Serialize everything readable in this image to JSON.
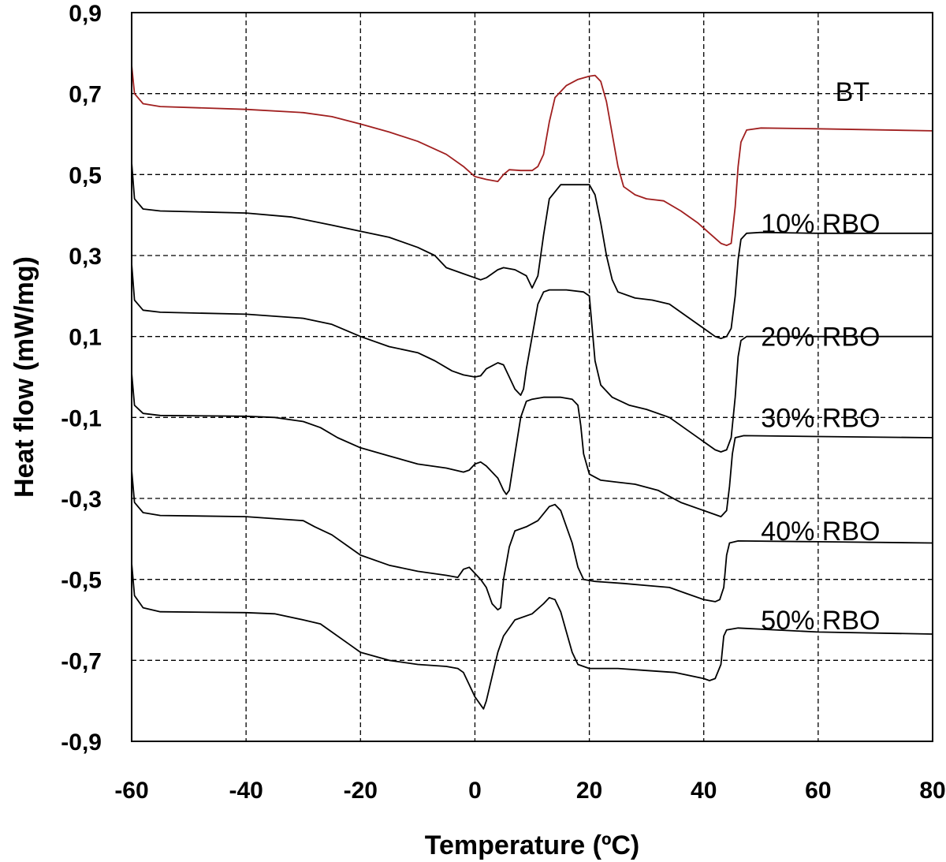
{
  "chart_data": {
    "type": "line",
    "title": "",
    "xlabel": "Temperature (ºC)",
    "ylabel": "Heat flow (mW/mg)",
    "xlim": [
      -60,
      80
    ],
    "ylim": [
      -0.9,
      0.9
    ],
    "xticks": [
      -60,
      -40,
      -20,
      0,
      20,
      40,
      60,
      80
    ],
    "xtick_labels": [
      "-60",
      "-40",
      "-20",
      "0",
      "20",
      "40",
      "60",
      "80"
    ],
    "yticks": [
      0.9,
      0.7,
      0.5,
      0.3,
      0.1,
      -0.1,
      -0.3,
      -0.5,
      -0.7,
      -0.9
    ],
    "ytick_labels": [
      "0,9",
      "0,7",
      "0,5",
      "0,3",
      "0,1",
      "-0,1",
      "-0,3",
      "-0,5",
      "-0,7",
      "-0,9"
    ],
    "grid": true,
    "series": [
      {
        "name": "BT",
        "color": "#a01f1f",
        "label_at": [
          63,
          0.705
        ],
        "points": [
          [
            -60,
            0.77
          ],
          [
            -59.5,
            0.7
          ],
          [
            -58,
            0.675
          ],
          [
            -55,
            0.668
          ],
          [
            -40,
            0.661
          ],
          [
            -30,
            0.653
          ],
          [
            -25,
            0.643
          ],
          [
            -20,
            0.625
          ],
          [
            -15,
            0.605
          ],
          [
            -10,
            0.582
          ],
          [
            -5,
            0.55
          ],
          [
            -2,
            0.52
          ],
          [
            0,
            0.495
          ],
          [
            2,
            0.488
          ],
          [
            4,
            0.483
          ],
          [
            5,
            0.5
          ],
          [
            6,
            0.512
          ],
          [
            8,
            0.51
          ],
          [
            10,
            0.51
          ],
          [
            11,
            0.52
          ],
          [
            12,
            0.55
          ],
          [
            13,
            0.63
          ],
          [
            14,
            0.69
          ],
          [
            16,
            0.72
          ],
          [
            18,
            0.735
          ],
          [
            20,
            0.743
          ],
          [
            21,
            0.745
          ],
          [
            22,
            0.73
          ],
          [
            23,
            0.68
          ],
          [
            24,
            0.6
          ],
          [
            25,
            0.52
          ],
          [
            26,
            0.47
          ],
          [
            28,
            0.45
          ],
          [
            30,
            0.44
          ],
          [
            33,
            0.435
          ],
          [
            36,
            0.41
          ],
          [
            39,
            0.38
          ],
          [
            41,
            0.355
          ],
          [
            43,
            0.33
          ],
          [
            44,
            0.325
          ],
          [
            44.8,
            0.33
          ],
          [
            45.5,
            0.42
          ],
          [
            46,
            0.52
          ],
          [
            46.5,
            0.58
          ],
          [
            47.5,
            0.61
          ],
          [
            50,
            0.615
          ],
          [
            60,
            0.613
          ],
          [
            80,
            0.608
          ]
        ]
      },
      {
        "name": "10% RBO",
        "color": "#000000",
        "label_at": [
          50,
          0.38
        ],
        "points": [
          [
            -60,
            0.53
          ],
          [
            -59.5,
            0.44
          ],
          [
            -58,
            0.415
          ],
          [
            -55,
            0.41
          ],
          [
            -40,
            0.405
          ],
          [
            -32,
            0.395
          ],
          [
            -25,
            0.375
          ],
          [
            -20,
            0.36
          ],
          [
            -15,
            0.345
          ],
          [
            -10,
            0.32
          ],
          [
            -7,
            0.3
          ],
          [
            -5,
            0.27
          ],
          [
            -2,
            0.255
          ],
          [
            0,
            0.245
          ],
          [
            1,
            0.24
          ],
          [
            2,
            0.245
          ],
          [
            4,
            0.265
          ],
          [
            5,
            0.27
          ],
          [
            7,
            0.265
          ],
          [
            9,
            0.25
          ],
          [
            10,
            0.22
          ],
          [
            11,
            0.25
          ],
          [
            12,
            0.35
          ],
          [
            13,
            0.44
          ],
          [
            15,
            0.475
          ],
          [
            20,
            0.475
          ],
          [
            21,
            0.45
          ],
          [
            22,
            0.38
          ],
          [
            23,
            0.3
          ],
          [
            24,
            0.24
          ],
          [
            25,
            0.21
          ],
          [
            28,
            0.195
          ],
          [
            31,
            0.19
          ],
          [
            34,
            0.18
          ],
          [
            37,
            0.15
          ],
          [
            40,
            0.12
          ],
          [
            42,
            0.1
          ],
          [
            43,
            0.095
          ],
          [
            44,
            0.1
          ],
          [
            44.8,
            0.12
          ],
          [
            45.5,
            0.2
          ],
          [
            46,
            0.29
          ],
          [
            46.5,
            0.34
          ],
          [
            47.5,
            0.355
          ],
          [
            50,
            0.357
          ],
          [
            60,
            0.355
          ],
          [
            80,
            0.355
          ]
        ]
      },
      {
        "name": "20% RBO",
        "color": "#000000",
        "label_at": [
          50,
          0.1
        ],
        "points": [
          [
            -60,
            0.28
          ],
          [
            -59.5,
            0.19
          ],
          [
            -58,
            0.165
          ],
          [
            -55,
            0.16
          ],
          [
            -40,
            0.155
          ],
          [
            -30,
            0.145
          ],
          [
            -25,
            0.13
          ],
          [
            -20,
            0.1
          ],
          [
            -15,
            0.075
          ],
          [
            -10,
            0.06
          ],
          [
            -7,
            0.04
          ],
          [
            -4,
            0.015
          ],
          [
            -2,
            0.005
          ],
          [
            0,
            0.0
          ],
          [
            1,
            0.003
          ],
          [
            2,
            0.02
          ],
          [
            4,
            0.035
          ],
          [
            5,
            0.03
          ],
          [
            6,
            0.0
          ],
          [
            7,
            -0.03
          ],
          [
            8,
            -0.045
          ],
          [
            8.5,
            -0.03
          ],
          [
            9,
            0.02
          ],
          [
            10,
            0.1
          ],
          [
            11,
            0.18
          ],
          [
            12,
            0.21
          ],
          [
            13,
            0.215
          ],
          [
            16,
            0.215
          ],
          [
            19,
            0.21
          ],
          [
            20,
            0.2
          ],
          [
            20.5,
            0.12
          ],
          [
            21,
            0.04
          ],
          [
            22,
            -0.02
          ],
          [
            24,
            -0.05
          ],
          [
            27,
            -0.07
          ],
          [
            30,
            -0.08
          ],
          [
            34,
            -0.1
          ],
          [
            37,
            -0.13
          ],
          [
            40,
            -0.16
          ],
          [
            42,
            -0.18
          ],
          [
            43,
            -0.185
          ],
          [
            44,
            -0.18
          ],
          [
            44.8,
            -0.15
          ],
          [
            45.5,
            -0.05
          ],
          [
            46,
            0.05
          ],
          [
            46.5,
            0.09
          ],
          [
            47.5,
            0.1
          ],
          [
            60,
            0.1
          ],
          [
            80,
            0.1
          ]
        ]
      },
      {
        "name": "30% RBO",
        "color": "#000000",
        "label_at": [
          50,
          -0.1
        ],
        "points": [
          [
            -60,
            0.01
          ],
          [
            -59.5,
            -0.07
          ],
          [
            -58,
            -0.09
          ],
          [
            -55,
            -0.095
          ],
          [
            -40,
            -0.097
          ],
          [
            -35,
            -0.1
          ],
          [
            -30,
            -0.11
          ],
          [
            -27,
            -0.125
          ],
          [
            -24,
            -0.15
          ],
          [
            -20,
            -0.175
          ],
          [
            -15,
            -0.195
          ],
          [
            -10,
            -0.215
          ],
          [
            -5,
            -0.225
          ],
          [
            -2,
            -0.235
          ],
          [
            -1,
            -0.23
          ],
          [
            0,
            -0.215
          ],
          [
            1,
            -0.21
          ],
          [
            2,
            -0.22
          ],
          [
            4,
            -0.25
          ],
          [
            5,
            -0.28
          ],
          [
            5.5,
            -0.29
          ],
          [
            6,
            -0.28
          ],
          [
            7,
            -0.19
          ],
          [
            8,
            -0.1
          ],
          [
            9,
            -0.06
          ],
          [
            10,
            -0.055
          ],
          [
            12,
            -0.05
          ],
          [
            15,
            -0.05
          ],
          [
            17,
            -0.055
          ],
          [
            18,
            -0.07
          ],
          [
            18.5,
            -0.12
          ],
          [
            19,
            -0.19
          ],
          [
            20,
            -0.24
          ],
          [
            22,
            -0.255
          ],
          [
            25,
            -0.26
          ],
          [
            28,
            -0.265
          ],
          [
            32,
            -0.28
          ],
          [
            36,
            -0.31
          ],
          [
            40,
            -0.33
          ],
          [
            42,
            -0.34
          ],
          [
            43,
            -0.345
          ],
          [
            44,
            -0.33
          ],
          [
            44.5,
            -0.27
          ],
          [
            45,
            -0.19
          ],
          [
            45.5,
            -0.15
          ],
          [
            47,
            -0.145
          ],
          [
            60,
            -0.147
          ],
          [
            80,
            -0.15
          ]
        ]
      },
      {
        "name": "40% RBO",
        "color": "#000000",
        "label_at": [
          50,
          -0.38
        ],
        "points": [
          [
            -60,
            -0.23
          ],
          [
            -59.5,
            -0.31
          ],
          [
            -58,
            -0.335
          ],
          [
            -55,
            -0.342
          ],
          [
            -40,
            -0.345
          ],
          [
            -30,
            -0.355
          ],
          [
            -28,
            -0.37
          ],
          [
            -25,
            -0.39
          ],
          [
            -22,
            -0.42
          ],
          [
            -20,
            -0.44
          ],
          [
            -15,
            -0.465
          ],
          [
            -10,
            -0.48
          ],
          [
            -5,
            -0.49
          ],
          [
            -3,
            -0.495
          ],
          [
            -2,
            -0.475
          ],
          [
            -1,
            -0.47
          ],
          [
            0,
            -0.485
          ],
          [
            1,
            -0.5
          ],
          [
            2,
            -0.52
          ],
          [
            3,
            -0.56
          ],
          [
            4,
            -0.575
          ],
          [
            4.5,
            -0.57
          ],
          [
            5,
            -0.5
          ],
          [
            6,
            -0.42
          ],
          [
            7,
            -0.38
          ],
          [
            9,
            -0.37
          ],
          [
            11,
            -0.355
          ],
          [
            13,
            -0.32
          ],
          [
            14,
            -0.315
          ],
          [
            15,
            -0.33
          ],
          [
            17,
            -0.41
          ],
          [
            18,
            -0.47
          ],
          [
            19,
            -0.5
          ],
          [
            21,
            -0.505
          ],
          [
            26,
            -0.51
          ],
          [
            30,
            -0.515
          ],
          [
            34,
            -0.52
          ],
          [
            37,
            -0.535
          ],
          [
            40,
            -0.55
          ],
          [
            42,
            -0.555
          ],
          [
            42.8,
            -0.55
          ],
          [
            43.5,
            -0.52
          ],
          [
            44,
            -0.44
          ],
          [
            44.5,
            -0.41
          ],
          [
            46,
            -0.405
          ],
          [
            60,
            -0.407
          ],
          [
            80,
            -0.41
          ]
        ]
      },
      {
        "name": "50% RBO",
        "color": "#000000",
        "label_at": [
          50,
          -0.6
        ],
        "points": [
          [
            -60,
            -0.46
          ],
          [
            -59.5,
            -0.54
          ],
          [
            -58,
            -0.57
          ],
          [
            -55,
            -0.58
          ],
          [
            -40,
            -0.582
          ],
          [
            -35,
            -0.585
          ],
          [
            -30,
            -0.6
          ],
          [
            -27,
            -0.61
          ],
          [
            -25,
            -0.63
          ],
          [
            -22,
            -0.66
          ],
          [
            -20,
            -0.68
          ],
          [
            -15,
            -0.7
          ],
          [
            -10,
            -0.71
          ],
          [
            -5,
            -0.715
          ],
          [
            -3,
            -0.72
          ],
          [
            -2,
            -0.73
          ],
          [
            -1,
            -0.76
          ],
          [
            0,
            -0.79
          ],
          [
            1,
            -0.81
          ],
          [
            1.5,
            -0.82
          ],
          [
            2,
            -0.8
          ],
          [
            3,
            -0.74
          ],
          [
            4,
            -0.68
          ],
          [
            5,
            -0.64
          ],
          [
            7,
            -0.6
          ],
          [
            10,
            -0.585
          ],
          [
            12,
            -0.56
          ],
          [
            13,
            -0.545
          ],
          [
            14,
            -0.55
          ],
          [
            15,
            -0.58
          ],
          [
            16,
            -0.63
          ],
          [
            17,
            -0.68
          ],
          [
            18,
            -0.71
          ],
          [
            20,
            -0.72
          ],
          [
            25,
            -0.72
          ],
          [
            30,
            -0.725
          ],
          [
            35,
            -0.73
          ],
          [
            40,
            -0.745
          ],
          [
            41,
            -0.75
          ],
          [
            42,
            -0.745
          ],
          [
            43,
            -0.71
          ],
          [
            43.5,
            -0.64
          ],
          [
            44,
            -0.625
          ],
          [
            46,
            -0.62
          ],
          [
            60,
            -0.63
          ],
          [
            80,
            -0.635
          ]
        ]
      }
    ]
  }
}
